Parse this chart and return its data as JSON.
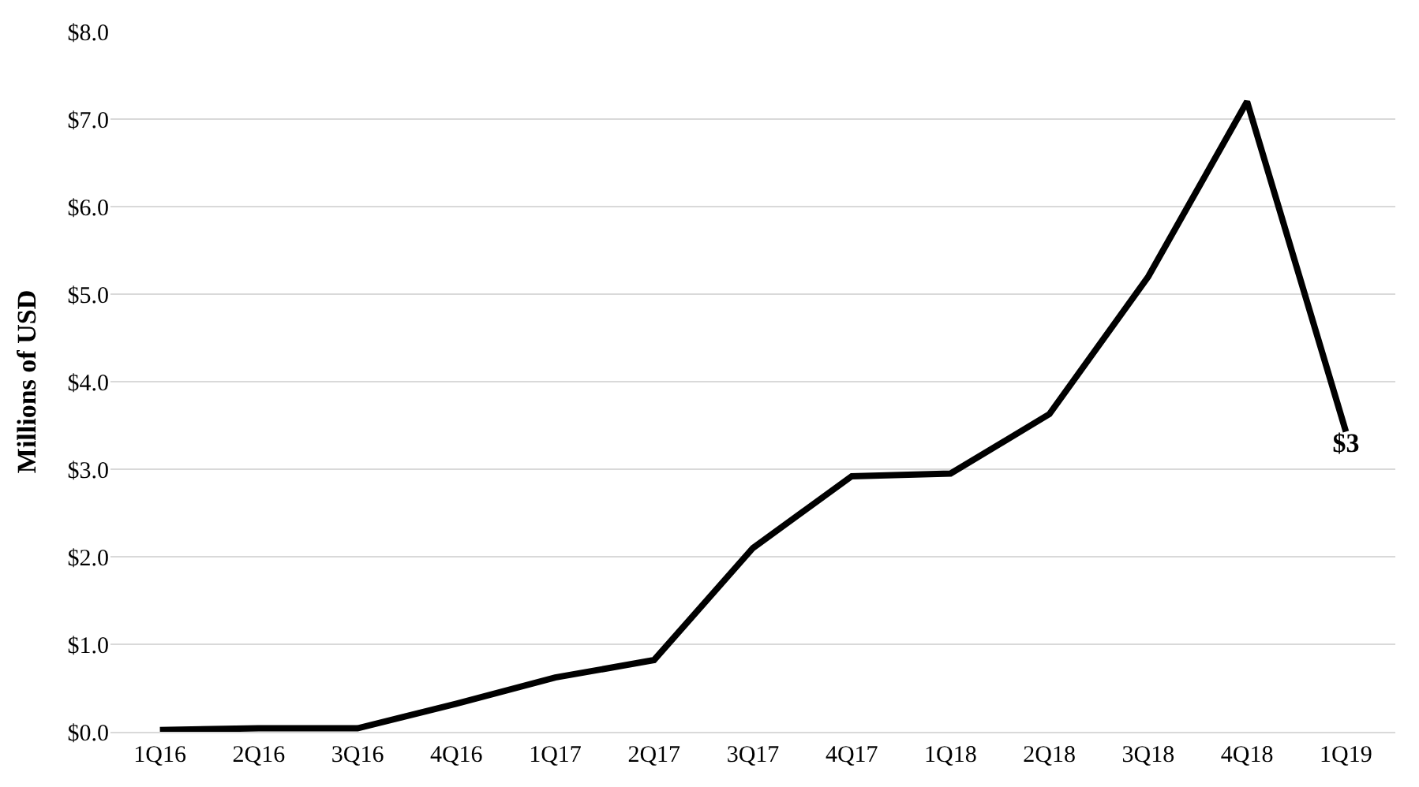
{
  "chart_data": {
    "type": "line",
    "ylabel": "Millions of USD",
    "categories": [
      "1Q16",
      "2Q16",
      "3Q16",
      "4Q16",
      "1Q17",
      "2Q17",
      "3Q17",
      "4Q17",
      "1Q18",
      "2Q18",
      "3Q18",
      "4Q18",
      "1Q19"
    ],
    "series": [
      {
        "color": "#000000",
        "values": [
          0.02,
          0.04,
          0.04,
          0.32,
          0.62,
          0.82,
          2.1,
          2.92,
          2.95,
          3.63,
          5.2,
          7.2,
          3.43
        ],
        "value_labels": [
          null,
          null,
          null,
          null,
          null,
          null,
          null,
          null,
          null,
          null,
          null,
          null,
          "$3"
        ]
      }
    ],
    "ylim": [
      0,
      8
    ],
    "yticks": [
      {
        "value": 0,
        "label": "$0.0"
      },
      {
        "value": 1,
        "label": "$1.0"
      },
      {
        "value": 2,
        "label": "$2.0"
      },
      {
        "value": 3,
        "label": "$3.0"
      },
      {
        "value": 4,
        "label": "$4.0"
      },
      {
        "value": 5,
        "label": "$5.0"
      },
      {
        "value": 6,
        "label": "$6.0"
      },
      {
        "value": 7,
        "label": "$7.0"
      },
      {
        "value": 8,
        "label": "$8.0"
      }
    ],
    "grid": "y",
    "marker": "none",
    "line_style": "solid"
  }
}
